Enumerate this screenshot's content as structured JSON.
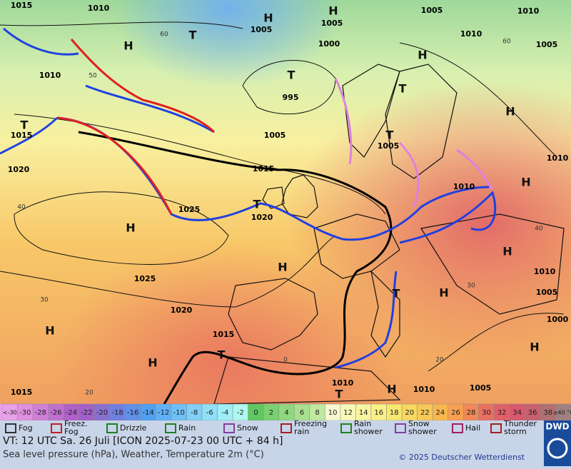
{
  "map": {
    "isobar_labels": [
      "1015",
      "1010",
      "1005",
      "1005",
      "1000",
      "995",
      "1005",
      "1005",
      "1015",
      "1010",
      "1025",
      "1020",
      "1025",
      "1020",
      "1015",
      "1010",
      "1010",
      "1005",
      "1010",
      "1005",
      "1000",
      "1010",
      "1005",
      "1010",
      "1005",
      "1010",
      "1010",
      "1015",
      "1020",
      "1015"
    ],
    "centers": [
      "H",
      "H",
      "H",
      "H",
      "H",
      "H",
      "H",
      "H",
      "H",
      "H",
      "H",
      "H",
      "H",
      "H",
      "T",
      "T",
      "T",
      "T",
      "T",
      "T",
      "T",
      "T",
      "T"
    ],
    "grid_labels": [
      "60",
      "50",
      "40",
      "30",
      "20",
      "0",
      "60",
      "40",
      "30",
      "20"
    ]
  },
  "scale": {
    "labels": [
      "<-30",
      "-30",
      "-28",
      "-26",
      "-24",
      "-22",
      "-20",
      "-18",
      "-16",
      "-14",
      "-12",
      "-10",
      "-8",
      "-6",
      "-4",
      "-2",
      "0",
      "2",
      "4",
      "6",
      "8",
      "10",
      "12",
      "14",
      "16",
      "18",
      "20",
      "22",
      "24",
      "26",
      "28",
      "30",
      "32",
      "34",
      "36",
      "38",
      "≥40 °C"
    ],
    "colors": [
      "#e8a0e8",
      "#e090e0",
      "#d080d8",
      "#c070d0",
      "#b060c8",
      "#a060c8",
      "#8870d0",
      "#7080e0",
      "#6090e8",
      "#50a0f0",
      "#60b0f8",
      "#70c0f8",
      "#80d0f8",
      "#90e0f8",
      "#a0eef8",
      "#b0f8f0",
      "#60c860",
      "#78d070",
      "#90d880",
      "#a8e090",
      "#c0e8a0",
      "#f8f8d0",
      "#f8f8b8",
      "#f8f4a0",
      "#f8f088",
      "#f8e870",
      "#f8d860",
      "#f8c858",
      "#f8b850",
      "#f8a050",
      "#f08858",
      "#e87060",
      "#e06068",
      "#d85870",
      "#c86070",
      "#b07070",
      "#a08080"
    ]
  },
  "legend": [
    [
      "Fog"
    ],
    [
      "Freez.",
      "Fog"
    ],
    [
      "Drizzle"
    ],
    [
      "Rain"
    ],
    [
      "Snow"
    ],
    [
      "Freezing",
      "rain"
    ],
    [
      "Rain",
      "shower"
    ],
    [
      "Snow",
      "shower"
    ],
    [
      "Hail"
    ],
    [
      "Thunder",
      "storm"
    ]
  ],
  "footer": {
    "valid_time": "VT: 12 UTC Sa.  26 Juli [ICON 2025-07-23  00 UTC + 84 h]",
    "description": "Sea level pressure (hPa), Weather, Temperature 2m (°C)",
    "copyright": "© 2025 Deutscher Wetterdienst",
    "logo": "DWD"
  }
}
